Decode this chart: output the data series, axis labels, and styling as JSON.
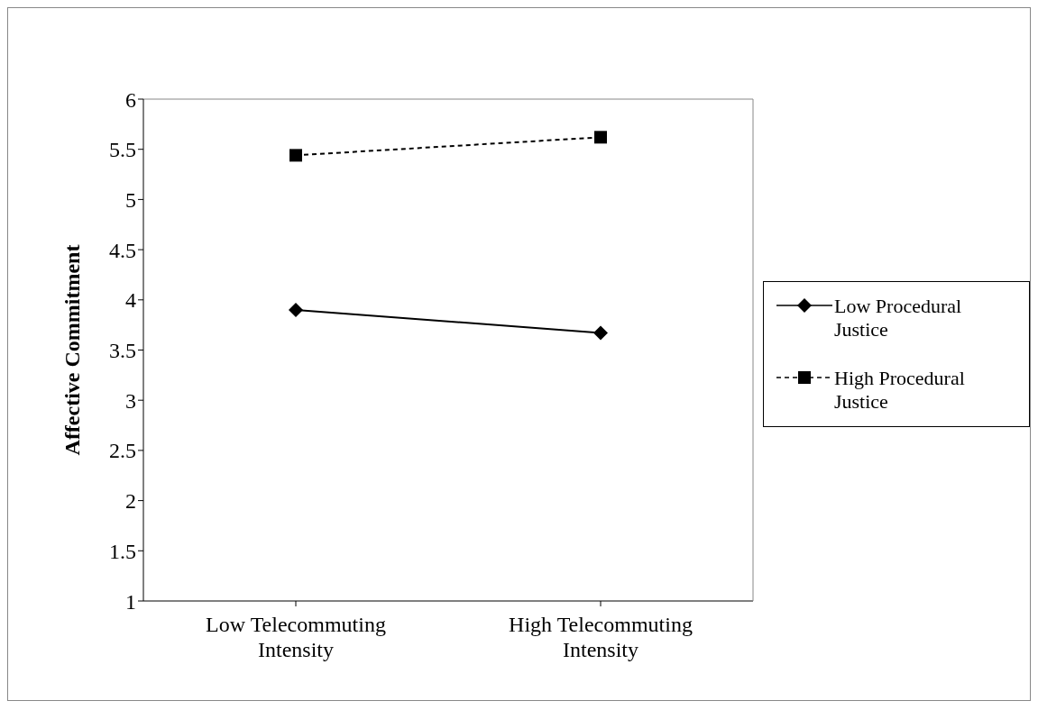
{
  "chart_data": {
    "type": "line",
    "ylabel": "Affective Commitment",
    "categories": [
      "Low Telecommuting Intensity",
      "High Telecommuting Intensity"
    ],
    "series": [
      {
        "name": "Low Procedural Justice",
        "color": "#000000",
        "values": [
          3.9,
          3.67
        ],
        "marker": "diamond",
        "line_style": "solid"
      },
      {
        "name": "High Procedural Justice",
        "color": "#000000",
        "values": [
          5.44,
          5.62
        ],
        "marker": "square",
        "line_style": "dashed"
      }
    ],
    "ylim": [
      1,
      6
    ],
    "yticks": [
      1,
      1.5,
      2,
      2.5,
      3,
      3.5,
      4,
      4.5,
      5,
      5.5,
      6
    ],
    "legend": "right"
  }
}
